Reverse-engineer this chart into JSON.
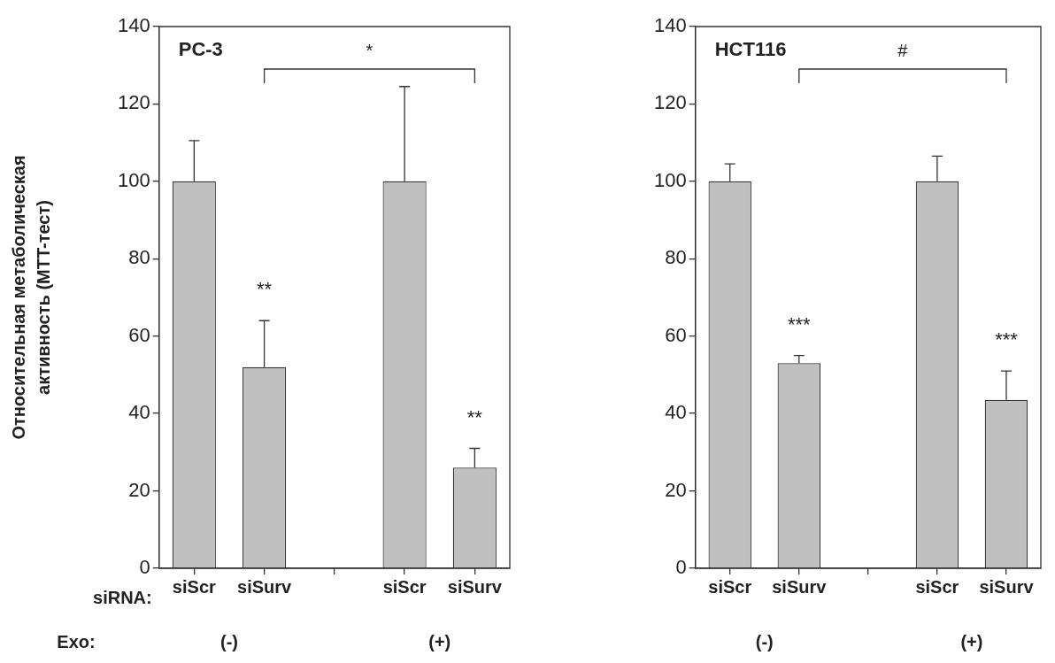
{
  "chart_data": [
    {
      "type": "bar",
      "title": "PC-3",
      "ylabel": "Относительная метаболическая активность (MTT-тест)",
      "xlabel": "siRNA:",
      "categories": [
        "siScr",
        "siSurv",
        null,
        "siScr",
        "siSurv"
      ],
      "series": [
        {
          "color": "#c0c0c0",
          "values": [
            100,
            52,
            null,
            100,
            26
          ],
          "errors": [
            [
              100,
              110.5
            ],
            [
              52,
              64
            ],
            null,
            [
              100,
              124.5
            ],
            [
              26,
              31
            ]
          ]
        }
      ],
      "ylim": [
        0,
        140
      ],
      "yticks": [
        0,
        20,
        40,
        60,
        80,
        100,
        120,
        140
      ],
      "grid": false,
      "legend": false,
      "annotations": [
        "**",
        "**",
        "*",
        "Exo:",
        "(-)",
        "(+)"
      ]
    },
    {
      "type": "bar",
      "title": "HCT116",
      "categories": [
        "siScr",
        "siSurv",
        null,
        "siScr",
        "siSurv"
      ],
      "series": [
        {
          "color": "#c0c0c0",
          "values": [
            100,
            53,
            null,
            100,
            43.5
          ],
          "errors": [
            [
              100,
              104.5
            ],
            [
              53,
              55
            ],
            null,
            [
              100,
              106.5
            ],
            [
              43.5,
              51
            ]
          ]
        }
      ],
      "ylim": [
        0,
        140
      ],
      "yticks": [
        0,
        20,
        40,
        60,
        80,
        100,
        120,
        140
      ],
      "grid": false,
      "legend": false,
      "annotations": [
        "***",
        "***",
        "#",
        "(-)",
        "(+)"
      ]
    }
  ]
}
